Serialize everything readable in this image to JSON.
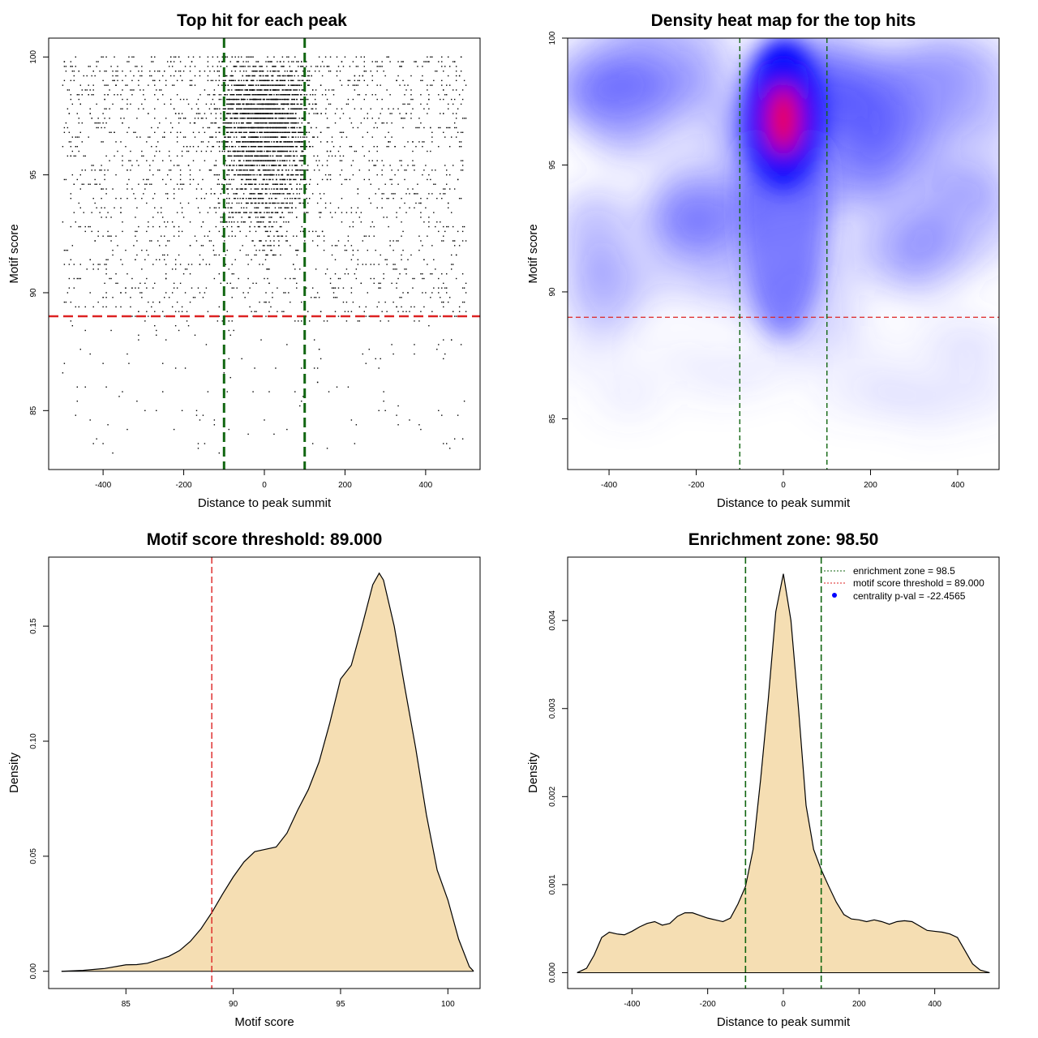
{
  "chart_data": [
    {
      "type": "scatter",
      "title": "Top hit for each peak",
      "xlabel": "Distance to peak summit",
      "ylabel": "Motif score",
      "xlim": [
        -535,
        535
      ],
      "ylim": [
        82.5,
        100.8
      ],
      "xticks": [
        -400,
        -200,
        0,
        200,
        400
      ],
      "yticks": [
        85,
        90,
        95,
        100
      ],
      "threshold_y": 89.0,
      "zone_x": [
        -100,
        100
      ],
      "point_color": "#000000",
      "threshold_color": "#dd2222",
      "zone_color": "#116611",
      "points_summary": "dense band of top hits concentrated between -100 and 100 around scores 92-100, sparser uniform spread across -500..500"
    },
    {
      "type": "heatmap",
      "title": "Density heat map for the top hits",
      "xlabel": "Distance to peak summit",
      "ylabel": "Motif score",
      "xlim": [
        -495,
        495
      ],
      "ylim": [
        83,
        100
      ],
      "xticks": [
        -400,
        -200,
        0,
        200,
        400
      ],
      "yticks": [
        85,
        90,
        95,
        100
      ],
      "threshold_y": 89.0,
      "zone_x": [
        -100,
        100
      ],
      "peak": {
        "x": 0,
        "y": 96.8
      },
      "colors": [
        "#ffffff",
        "#0000ff",
        "#ff0000"
      ],
      "threshold_color": "#dd2222",
      "zone_color": "#116611"
    },
    {
      "type": "area",
      "title": "Motif score threshold: 89.000",
      "xlabel": "Motif score",
      "ylabel": "Density",
      "xlim": [
        81.4,
        101.5
      ],
      "ylim": [
        -0.0075,
        0.18
      ],
      "xticks": [
        85,
        90,
        95,
        100
      ],
      "yticks": [
        0.0,
        0.05,
        0.1,
        0.15
      ],
      "ytick_labels": [
        "0.00",
        "0.05",
        "0.10",
        "0.15"
      ],
      "threshold_x": 89.0,
      "fill_color": "#f5deb3",
      "line_color": "#dd2222",
      "x": [
        82,
        83,
        84,
        85,
        85.5,
        86,
        86.5,
        87,
        87.5,
        88,
        88.5,
        89,
        89.5,
        90,
        90.5,
        91,
        91.5,
        92,
        92.5,
        93,
        93.5,
        94,
        94.5,
        95,
        95.5,
        96,
        96.5,
        96.8,
        97,
        97.5,
        98,
        98.5,
        99,
        99.5,
        100,
        100.5,
        101,
        101.2
      ],
      "y": [
        0.0,
        0.0004,
        0.0012,
        0.0028,
        0.0029,
        0.0035,
        0.005,
        0.0065,
        0.009,
        0.013,
        0.0185,
        0.0255,
        0.0335,
        0.041,
        0.0475,
        0.052,
        0.053,
        0.054,
        0.06,
        0.07,
        0.079,
        0.091,
        0.108,
        0.127,
        0.133,
        0.15,
        0.168,
        0.173,
        0.17,
        0.15,
        0.123,
        0.097,
        0.068,
        0.044,
        0.031,
        0.014,
        0.002,
        0.0
      ]
    },
    {
      "type": "area",
      "title": "Enrichment zone: 98.50",
      "xlabel": "Distance to peak summit",
      "ylabel": "Density",
      "xlim": [
        -570,
        570
      ],
      "ylim": [
        -0.00018,
        0.00472
      ],
      "xticks": [
        -400,
        -200,
        0,
        200,
        400
      ],
      "yticks": [
        0.0,
        0.001,
        0.002,
        0.003,
        0.004
      ],
      "ytick_labels": [
        "0.000",
        "0.001",
        "0.002",
        "0.003",
        "0.004"
      ],
      "zone_x": [
        -100,
        100
      ],
      "fill_color": "#f5deb3",
      "zone_color": "#116611",
      "legend_position": "top-right",
      "legend": [
        {
          "label": "enrichment zone = 98.5",
          "color": "#116611",
          "style": "dotted-line"
        },
        {
          "label": "motif score threshold = 89.000",
          "color": "#dd2222",
          "style": "dotted-line"
        },
        {
          "label": "centrality p-val = -22.4565",
          "color": "#0000ff",
          "style": "point"
        }
      ],
      "x": [
        -545,
        -520,
        -500,
        -480,
        -460,
        -440,
        -420,
        -400,
        -380,
        -360,
        -340,
        -320,
        -300,
        -280,
        -260,
        -240,
        -220,
        -200,
        -180,
        -160,
        -140,
        -120,
        -100,
        -80,
        -60,
        -40,
        -20,
        0,
        20,
        40,
        60,
        80,
        100,
        120,
        140,
        160,
        180,
        200,
        220,
        240,
        260,
        280,
        300,
        320,
        340,
        360,
        380,
        400,
        420,
        440,
        460,
        480,
        500,
        520,
        545
      ],
      "y": [
        0.0,
        5e-05,
        0.0002,
        0.0004,
        0.00046,
        0.00044,
        0.00043,
        0.00047,
        0.00052,
        0.00056,
        0.00058,
        0.00054,
        0.00056,
        0.00064,
        0.00068,
        0.00068,
        0.00065,
        0.00062,
        0.0006,
        0.00058,
        0.00062,
        0.00078,
        0.00098,
        0.0014,
        0.0022,
        0.0031,
        0.0041,
        0.00453,
        0.004,
        0.003,
        0.0019,
        0.0014,
        0.00117,
        0.00098,
        0.0008,
        0.00066,
        0.00061,
        0.0006,
        0.00058,
        0.0006,
        0.00058,
        0.00055,
        0.00058,
        0.00059,
        0.00058,
        0.00053,
        0.00048,
        0.00047,
        0.00046,
        0.00044,
        0.0004,
        0.00025,
        0.0001,
        3e-05,
        0.0
      ]
    }
  ]
}
